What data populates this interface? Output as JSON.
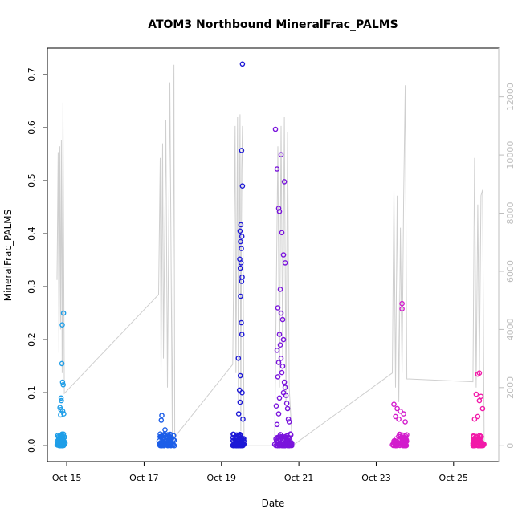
{
  "chart_data": {
    "type": "scatter",
    "title": "ATOM3 Northbound MineralFrac_PALMS",
    "xlabel": "Date",
    "ylabel": "MineralFrac_PALMS",
    "x_axis": {
      "type": "date",
      "min": "2016-10-14T12:00",
      "max": "2016-10-26T04:00",
      "ticks": [
        {
          "label": "Oct 15",
          "date": "2016-10-15"
        },
        {
          "label": "Oct 17",
          "date": "2016-10-17"
        },
        {
          "label": "Oct 19",
          "date": "2016-10-19"
        },
        {
          "label": "Oct 21",
          "date": "2016-10-21"
        },
        {
          "label": "Oct 23",
          "date": "2016-10-23"
        },
        {
          "label": "Oct 25",
          "date": "2016-10-25"
        }
      ]
    },
    "y_axis": {
      "min": -0.03,
      "max": 0.75,
      "ticks": [
        "0.0",
        "0.1",
        "0.2",
        "0.3",
        "0.4",
        "0.5",
        "0.6",
        "0.7"
      ]
    },
    "y2_axis": {
      "min": -545,
      "max": 13675,
      "ticks": [
        "0",
        "2000",
        "4000",
        "6000",
        "8000",
        "10000",
        "12000"
      ],
      "color": "#bdbdbd"
    },
    "grid": false,
    "flights": [
      {
        "color": "#1e9ee8",
        "start": "2016-10-14T18:00",
        "end": "2016-10-14T23:00",
        "high_points": [
          {
            "x": "2016-10-14T22:00",
            "y": 0.25
          },
          {
            "x": "2016-10-14T21:12",
            "y": 0.228
          },
          {
            "x": "2016-10-14T21:00",
            "y": 0.155
          },
          {
            "x": "2016-10-14T21:24",
            "y": 0.12
          },
          {
            "x": "2016-10-14T21:50",
            "y": 0.115
          },
          {
            "x": "2016-10-14T20:30",
            "y": 0.09
          },
          {
            "x": "2016-10-14T20:40",
            "y": 0.085
          },
          {
            "x": "2016-10-14T19:50",
            "y": 0.072
          },
          {
            "x": "2016-10-14T20:20",
            "y": 0.068
          },
          {
            "x": "2016-10-14T21:30",
            "y": 0.065
          },
          {
            "x": "2016-10-14T22:10",
            "y": 0.06
          },
          {
            "x": "2016-10-14T20:10",
            "y": 0.058
          }
        ],
        "altitude": [
          {
            "x": "2016-10-14T18:00",
            "y": 5700
          },
          {
            "x": "2016-10-14T18:40",
            "y": 10100
          },
          {
            "x": "2016-10-14T19:10",
            "y": 3200
          },
          {
            "x": "2016-10-14T19:40",
            "y": 10300
          },
          {
            "x": "2016-10-14T20:10",
            "y": 4000
          },
          {
            "x": "2016-10-14T20:40",
            "y": 10500
          },
          {
            "x": "2016-10-14T21:10",
            "y": 2500
          },
          {
            "x": "2016-10-14T21:40",
            "y": 11800
          },
          {
            "x": "2016-10-14T22:30",
            "y": 1800
          }
        ]
      },
      {
        "color": "#1c5ee8",
        "start": "2016-10-17T09:00",
        "end": "2016-10-17T19:00",
        "high_points": [
          {
            "x": "2016-10-17T11:00",
            "y": 0.057
          },
          {
            "x": "2016-10-17T10:40",
            "y": 0.048
          },
          {
            "x": "2016-10-17T13:00",
            "y": 0.03
          },
          {
            "x": "2016-10-17T10:00",
            "y": 0.022
          },
          {
            "x": "2016-10-17T15:00",
            "y": 0.02
          }
        ],
        "altitude": [
          {
            "x": "2016-10-17T09:00",
            "y": 5200
          },
          {
            "x": "2016-10-17T10:00",
            "y": 9900
          },
          {
            "x": "2016-10-17T10:30",
            "y": 2500
          },
          {
            "x": "2016-10-17T11:30",
            "y": 10400
          },
          {
            "x": "2016-10-17T12:00",
            "y": 3000
          },
          {
            "x": "2016-10-17T13:30",
            "y": 11200
          },
          {
            "x": "2016-10-17T14:30",
            "y": 2000
          },
          {
            "x": "2016-10-17T16:00",
            "y": 12500
          },
          {
            "x": "2016-10-17T17:30",
            "y": 200
          },
          {
            "x": "2016-10-17T18:30",
            "y": 13100
          },
          {
            "x": "2016-10-17T19:00",
            "y": 300
          }
        ]
      },
      {
        "color": "#1d18d6",
        "start": "2016-10-19T07:00",
        "end": "2016-10-19T14:00",
        "high_points": [
          {
            "x": "2016-10-19T13:00",
            "y": 0.72
          },
          {
            "x": "2016-10-19T12:30",
            "y": 0.557
          },
          {
            "x": "2016-10-19T13:00",
            "y": 0.49
          },
          {
            "x": "2016-10-19T12:00",
            "y": 0.417
          },
          {
            "x": "2016-10-19T11:30",
            "y": 0.405
          },
          {
            "x": "2016-10-19T12:40",
            "y": 0.395
          },
          {
            "x": "2016-10-19T11:50",
            "y": 0.385
          },
          {
            "x": "2016-10-19T12:20",
            "y": 0.372
          },
          {
            "x": "2016-10-19T11:20",
            "y": 0.352
          },
          {
            "x": "2016-10-19T12:10",
            "y": 0.345
          },
          {
            "x": "2016-10-19T11:40",
            "y": 0.335
          },
          {
            "x": "2016-10-19T12:50",
            "y": 0.318
          },
          {
            "x": "2016-10-19T12:30",
            "y": 0.31
          },
          {
            "x": "2016-10-19T11:50",
            "y": 0.282
          },
          {
            "x": "2016-10-19T12:20",
            "y": 0.232
          },
          {
            "x": "2016-10-19T12:40",
            "y": 0.21
          },
          {
            "x": "2016-10-19T10:30",
            "y": 0.165
          },
          {
            "x": "2016-10-19T11:40",
            "y": 0.132
          },
          {
            "x": "2016-10-19T11:10",
            "y": 0.105
          },
          {
            "x": "2016-10-19T12:50",
            "y": 0.1
          },
          {
            "x": "2016-10-19T11:30",
            "y": 0.082
          },
          {
            "x": "2016-10-19T10:40",
            "y": 0.06
          },
          {
            "x": "2016-10-19T13:20",
            "y": 0.05
          }
        ],
        "altitude": [
          {
            "x": "2016-10-19T07:00",
            "y": 2800
          },
          {
            "x": "2016-10-19T08:30",
            "y": 11000
          },
          {
            "x": "2016-10-19T09:00",
            "y": 2500
          },
          {
            "x": "2016-10-19T10:00",
            "y": 11300
          },
          {
            "x": "2016-10-19T10:30",
            "y": 1500
          },
          {
            "x": "2016-10-19T11:30",
            "y": 11400
          },
          {
            "x": "2016-10-19T12:00",
            "y": 500
          },
          {
            "x": "2016-10-19T12:30",
            "y": 9500
          },
          {
            "x": "2016-10-19T13:00",
            "y": 11000
          },
          {
            "x": "2016-10-19T14:00",
            "y": 0
          }
        ]
      },
      {
        "color": "#7a14dc",
        "start": "2016-10-20T09:00",
        "end": "2016-10-20T20:00",
        "high_points": [
          {
            "x": "2016-10-20T09:30",
            "y": 0.597
          },
          {
            "x": "2016-10-20T13:00",
            "y": 0.549
          },
          {
            "x": "2016-10-20T10:30",
            "y": 0.522
          },
          {
            "x": "2016-10-20T15:00",
            "y": 0.498
          },
          {
            "x": "2016-10-20T11:30",
            "y": 0.448
          },
          {
            "x": "2016-10-20T12:00",
            "y": 0.442
          },
          {
            "x": "2016-10-20T13:30",
            "y": 0.402
          },
          {
            "x": "2016-10-20T14:30",
            "y": 0.36
          },
          {
            "x": "2016-10-20T15:30",
            "y": 0.345
          },
          {
            "x": "2016-10-20T12:30",
            "y": 0.295
          },
          {
            "x": "2016-10-20T11:00",
            "y": 0.26
          },
          {
            "x": "2016-10-20T13:00",
            "y": 0.25
          },
          {
            "x": "2016-10-20T14:00",
            "y": 0.238
          },
          {
            "x": "2016-10-20T12:00",
            "y": 0.21
          },
          {
            "x": "2016-10-20T14:30",
            "y": 0.2
          },
          {
            "x": "2016-10-20T12:30",
            "y": 0.19
          },
          {
            "x": "2016-10-20T10:30",
            "y": 0.18
          },
          {
            "x": "2016-10-20T13:00",
            "y": 0.165
          },
          {
            "x": "2016-10-20T11:30",
            "y": 0.157
          },
          {
            "x": "2016-10-20T14:00",
            "y": 0.15
          },
          {
            "x": "2016-10-20T13:30",
            "y": 0.138
          },
          {
            "x": "2016-10-20T11:00",
            "y": 0.13
          },
          {
            "x": "2016-10-20T15:00",
            "y": 0.12
          },
          {
            "x": "2016-10-20T15:30",
            "y": 0.11
          },
          {
            "x": "2016-10-20T14:30",
            "y": 0.1
          },
          {
            "x": "2016-10-20T16:00",
            "y": 0.095
          },
          {
            "x": "2016-10-20T12:00",
            "y": 0.09
          },
          {
            "x": "2016-10-20T16:30",
            "y": 0.08
          },
          {
            "x": "2016-10-20T10:00",
            "y": 0.075
          },
          {
            "x": "2016-10-20T17:00",
            "y": 0.07
          },
          {
            "x": "2016-10-20T11:30",
            "y": 0.06
          },
          {
            "x": "2016-10-20T17:30",
            "y": 0.05
          },
          {
            "x": "2016-10-20T18:00",
            "y": 0.045
          },
          {
            "x": "2016-10-20T10:30",
            "y": 0.04
          }
        ],
        "altitude": [
          {
            "x": "2016-10-20T09:00",
            "y": 0
          },
          {
            "x": "2016-10-20T11:00",
            "y": 10300
          },
          {
            "x": "2016-10-20T12:00",
            "y": 2000
          },
          {
            "x": "2016-10-20T13:00",
            "y": 11000
          },
          {
            "x": "2016-10-20T14:00",
            "y": 3000
          },
          {
            "x": "2016-10-20T15:00",
            "y": 11300
          },
          {
            "x": "2016-10-20T16:00",
            "y": 1500
          },
          {
            "x": "2016-10-20T17:00",
            "y": 10800
          },
          {
            "x": "2016-10-20T18:00",
            "y": 2000
          },
          {
            "x": "2016-10-20T20:00",
            "y": 0
          }
        ]
      },
      {
        "color": "#d21ccc",
        "start": "2016-10-23T10:00",
        "end": "2016-10-23T19:00",
        "high_points": [
          {
            "x": "2016-10-23T16:00",
            "y": 0.268
          },
          {
            "x": "2016-10-23T16:00",
            "y": 0.258
          },
          {
            "x": "2016-10-23T11:00",
            "y": 0.078
          },
          {
            "x": "2016-10-23T13:00",
            "y": 0.07
          },
          {
            "x": "2016-10-23T15:00",
            "y": 0.065
          },
          {
            "x": "2016-10-23T17:00",
            "y": 0.06
          },
          {
            "x": "2016-10-23T12:00",
            "y": 0.055
          },
          {
            "x": "2016-10-23T14:00",
            "y": 0.05
          },
          {
            "x": "2016-10-23T18:00",
            "y": 0.045
          }
        ],
        "altitude": [
          {
            "x": "2016-10-23T10:00",
            "y": 2500
          },
          {
            "x": "2016-10-23T11:00",
            "y": 8800
          },
          {
            "x": "2016-10-23T12:00",
            "y": 2000
          },
          {
            "x": "2016-10-23T13:00",
            "y": 8600
          },
          {
            "x": "2016-10-23T14:00",
            "y": 1500
          },
          {
            "x": "2016-10-23T15:00",
            "y": 7500
          },
          {
            "x": "2016-10-23T16:00",
            "y": 2500
          },
          {
            "x": "2016-10-23T17:00",
            "y": 8500
          },
          {
            "x": "2016-10-23T18:00",
            "y": 12400
          },
          {
            "x": "2016-10-23T19:00",
            "y": 2300
          }
        ]
      },
      {
        "color": "#f21aa8",
        "start": "2016-10-25T12:00",
        "end": "2016-10-25T19:00",
        "high_points": [
          {
            "x": "2016-10-25T16:00",
            "y": 0.137
          },
          {
            "x": "2016-10-25T15:00",
            "y": 0.135
          },
          {
            "x": "2016-10-25T14:00",
            "y": 0.097
          },
          {
            "x": "2016-10-25T17:00",
            "y": 0.093
          },
          {
            "x": "2016-10-25T16:00",
            "y": 0.085
          },
          {
            "x": "2016-10-25T18:00",
            "y": 0.07
          },
          {
            "x": "2016-10-25T15:00",
            "y": 0.055
          },
          {
            "x": "2016-10-25T13:00",
            "y": 0.05
          }
        ],
        "altitude": [
          {
            "x": "2016-10-25T12:00",
            "y": 2200
          },
          {
            "x": "2016-10-25T13:00",
            "y": 9900
          },
          {
            "x": "2016-10-25T14:00",
            "y": 2000
          },
          {
            "x": "2016-10-25T15:00",
            "y": 8300
          },
          {
            "x": "2016-10-25T16:00",
            "y": 2500
          },
          {
            "x": "2016-10-25T17:00",
            "y": 8600
          },
          {
            "x": "2016-10-25T18:00",
            "y": 8800
          },
          {
            "x": "2016-10-25T19:00",
            "y": 0
          }
        ]
      }
    ]
  }
}
